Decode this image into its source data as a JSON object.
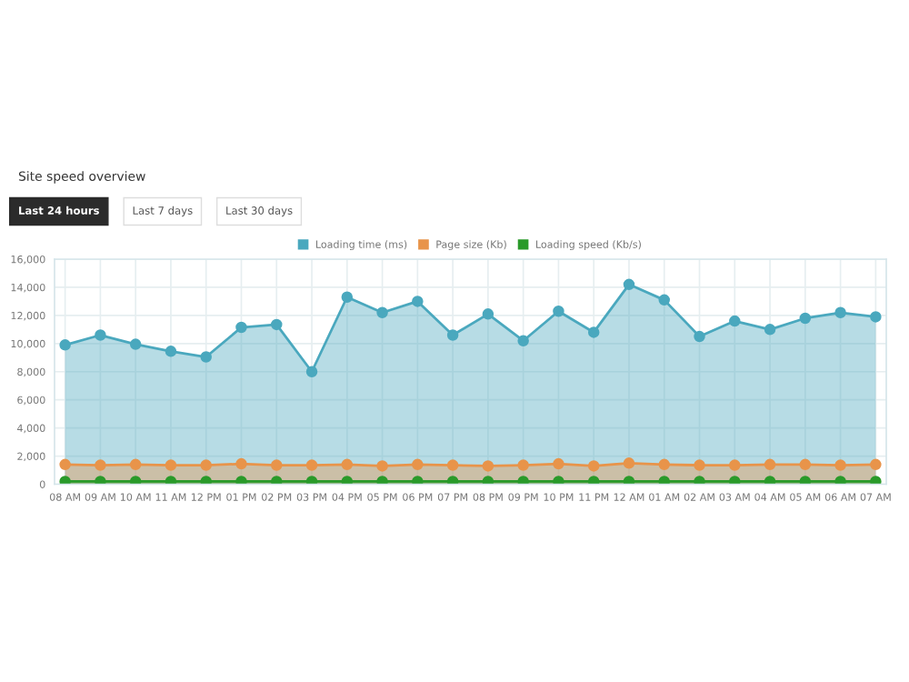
{
  "chart_data": {
    "type": "area",
    "title": "Site speed overview",
    "annotations": [
      "Last 24 hours",
      "Last 7 days",
      "Last 30 days"
    ],
    "categories": [
      "08 AM",
      "09 AM",
      "10 AM",
      "11 AM",
      "12 PM",
      "01 PM",
      "02 PM",
      "03 PM",
      "04 PM",
      "05 PM",
      "06 PM",
      "07 PM",
      "08 PM",
      "09 PM",
      "10 PM",
      "11 PM",
      "12 AM",
      "01 AM",
      "02 AM",
      "03 AM",
      "04 AM",
      "05 AM",
      "06 AM",
      "07 AM"
    ],
    "series": [
      {
        "name": "Loading time (ms)",
        "color": "#4aa8be",
        "values": [
          9900,
          10600,
          9950,
          9450,
          9050,
          11150,
          11350,
          8000,
          13300,
          12200,
          13000,
          10600,
          12100,
          10200,
          12300,
          10800,
          14200,
          13100,
          10500,
          11600,
          11000,
          11800,
          12200,
          11900
        ]
      },
      {
        "name": "Page size (Kb)",
        "color": "#e8944a",
        "values": [
          1400,
          1350,
          1400,
          1350,
          1350,
          1450,
          1350,
          1350,
          1400,
          1300,
          1400,
          1350,
          1300,
          1350,
          1450,
          1300,
          1500,
          1400,
          1350,
          1350,
          1400,
          1400,
          1350,
          1400
        ]
      },
      {
        "name": "Loading speed (Kb/s)",
        "color": "#2a9a2a",
        "values": [
          200,
          200,
          200,
          200,
          200,
          200,
          200,
          200,
          200,
          200,
          200,
          200,
          200,
          200,
          200,
          200,
          200,
          200,
          200,
          200,
          200,
          200,
          200,
          200
        ]
      }
    ],
    "ylim": [
      0,
      16000
    ],
    "yticks": [
      0,
      {
        "value": 2000,
        "label": "2,000"
      },
      {
        "value": 4000,
        "label": "4,000"
      },
      {
        "value": 6000,
        "label": "6,000"
      },
      {
        "value": 8000,
        "label": "8,000"
      },
      {
        "value": 10000,
        "label": "10,000"
      },
      {
        "value": 12000,
        "label": "12,000"
      },
      {
        "value": 14000,
        "label": "14,000"
      },
      {
        "value": 16000,
        "label": "16,000"
      }
    ],
    "grid": true,
    "legend": "top",
    "marker": "circle"
  }
}
